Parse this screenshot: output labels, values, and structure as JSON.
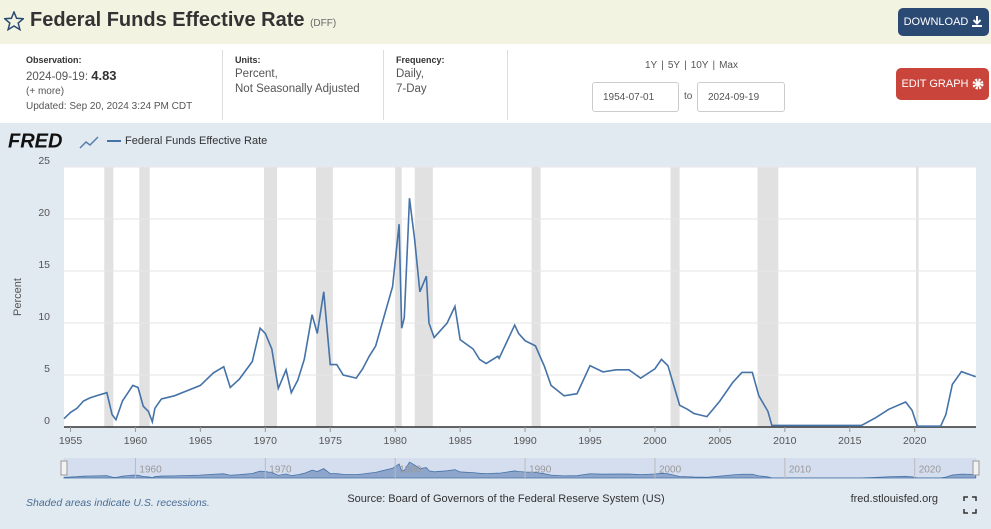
{
  "header": {
    "title": "Federal Funds Effective Rate",
    "series_id": "(DFF)",
    "download": "DOWNLOAD"
  },
  "info": {
    "observation_label": "Observation:",
    "observation_date": "2024-09-19:",
    "observation_value": "4.83",
    "more": "(+ more)",
    "updated": "Updated: Sep 20, 2024 3:24 PM CDT",
    "units_label": "Units:",
    "units_1": "Percent,",
    "units_2": "Not Seasonally Adjusted",
    "frequency_label": "Frequency:",
    "frequency_1": "Daily,",
    "frequency_2": "7-Day",
    "ranges": [
      "1Y",
      "5Y",
      "10Y",
      "Max"
    ],
    "separator": "|",
    "start_date": "1954-07-01",
    "to": "to",
    "end_date": "2024-09-19",
    "edit_graph": "EDIT GRAPH"
  },
  "logo": "FRED",
  "chart_data": {
    "type": "line",
    "ylabel": "Percent",
    "series": [
      {
        "name": "Federal Funds Effective Rate",
        "color": "#4572a7",
        "values": [
          0.8,
          1.4,
          1.8,
          2.5,
          2.8,
          3.0,
          3.3,
          1.2,
          0.7,
          2.5,
          4.0,
          3.8,
          2.0,
          1.5,
          0.5,
          1.8,
          2.7,
          3.0,
          3.5,
          4.0,
          5.2,
          5.8,
          3.8,
          4.6,
          6.3,
          9.5,
          9.0,
          7.5,
          3.7,
          5.5,
          3.3,
          4.5,
          6.5,
          10.8,
          9.0,
          13.0,
          6.0,
          6.0,
          5.0,
          4.7,
          5.6,
          6.8,
          7.8,
          10.0,
          13.5,
          19.5,
          9.5,
          10.5,
          19.0,
          22.0,
          18.0,
          13.0,
          14.5,
          10.0,
          8.6,
          10.0,
          11.6,
          8.4,
          7.5,
          6.5,
          6.1,
          6.8,
          6.6,
          9.8,
          9.0,
          8.3,
          7.8,
          5.8,
          4.0,
          3.0,
          3.2,
          5.9,
          5.3,
          5.5,
          5.5,
          4.7,
          5.6,
          6.5,
          5.9,
          2.1,
          1.7,
          1.3,
          1.0,
          2.5,
          4.3,
          5.25,
          5.25,
          3.0,
          1.5,
          0.15,
          0.15,
          0.15,
          0.9,
          1.7,
          2.4,
          1.6,
          0.08,
          0.08,
          1.2,
          4.1,
          5.33,
          4.83
        ]
      }
    ],
    "x": [
      1954.5,
      1955,
      1955.5,
      1956,
      1956.5,
      1957,
      1957.8,
      1958.2,
      1958.5,
      1959,
      1959.8,
      1960.2,
      1960.6,
      1961,
      1961.3,
      1961.5,
      1962,
      1963,
      1964,
      1965,
      1966,
      1966.8,
      1967.3,
      1968,
      1969,
      1969.6,
      1970,
      1970.5,
      1971,
      1971.6,
      1972,
      1972.5,
      1973,
      1973.6,
      1974,
      1974.5,
      1975,
      1975.5,
      1976,
      1977,
      1977.5,
      1978,
      1978.5,
      1979,
      1979.8,
      1980.3,
      1980.5,
      1980.7,
      1981,
      1981.1,
      1981.5,
      1981.9,
      1982.4,
      1982.6,
      1983,
      1984,
      1984.6,
      1985,
      1986,
      1986.5,
      1987,
      1987.9,
      1988,
      1989.2,
      1989.5,
      1990,
      1990.8,
      1991.5,
      1992,
      1993,
      1994,
      1995,
      1996,
      1997,
      1998,
      1998.9,
      2000,
      2000.5,
      2001,
      2001.9,
      2002.5,
      2003,
      2004,
      2005,
      2006,
      2006.7,
      2007.5,
      2008,
      2008.7,
      2009,
      2012,
      2015.9,
      2017,
      2018,
      2019.3,
      2019.8,
      2020.2,
      2022,
      2022.4,
      2022.9,
      2023.6,
      2024.7
    ],
    "recessions": [
      [
        1957.6,
        1958.3
      ],
      [
        1960.3,
        1961.1
      ],
      [
        1969.9,
        1970.9
      ],
      [
        1973.9,
        1975.2
      ],
      [
        1980.0,
        1980.5
      ],
      [
        1981.5,
        1982.9
      ],
      [
        1990.5,
        1991.2
      ],
      [
        2001.2,
        2001.9
      ],
      [
        2007.9,
        2009.5
      ],
      [
        2020.1,
        2020.3
      ]
    ],
    "xlim": [
      1954.5,
      2024.72
    ],
    "xticks": [
      1955,
      1960,
      1965,
      1970,
      1975,
      1980,
      1985,
      1990,
      1995,
      2000,
      2005,
      2010,
      2015,
      2020
    ],
    "ylim": [
      0,
      25
    ],
    "yticks": [
      0,
      5,
      10,
      15,
      20,
      25
    ],
    "grid": true,
    "navigator_xticks": [
      1960,
      1970,
      1980,
      1990,
      2000,
      2010,
      2020
    ]
  },
  "footer": {
    "note": "Shaded areas indicate U.S. recessions.",
    "source": "Source: Board of Governors of the Federal Reserve System (US)",
    "site": "fred.stlouisfed.org"
  }
}
